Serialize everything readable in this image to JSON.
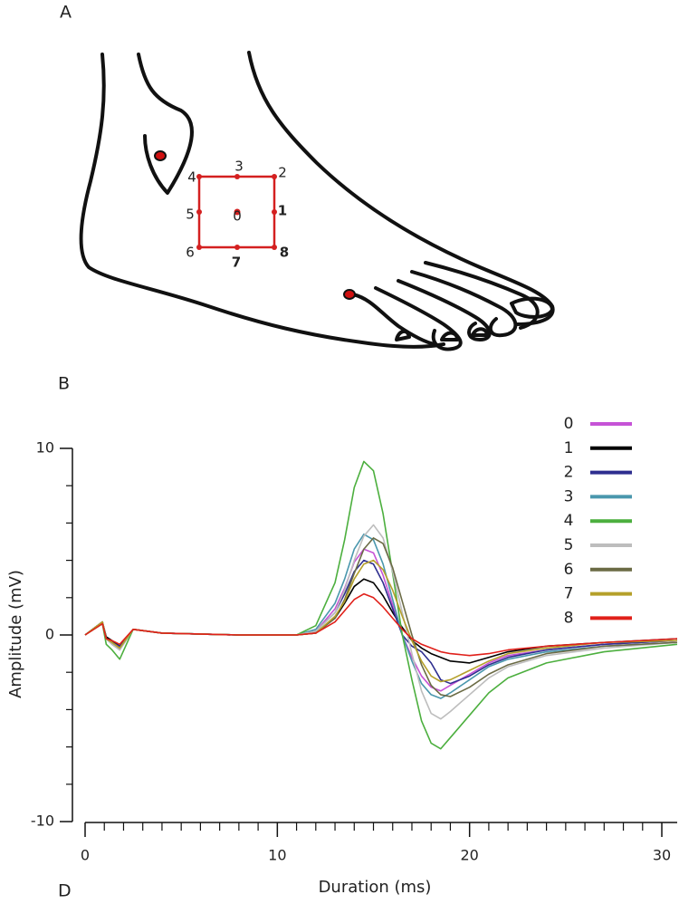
{
  "figure_labels": [
    "A",
    "B",
    "D"
  ],
  "diagram": {
    "electrode_labels": [
      "0",
      "1",
      "2",
      "3",
      "4",
      "5",
      "6",
      "7",
      "8"
    ]
  },
  "chart_data": {
    "type": "line",
    "x_label": "Duration (ms)",
    "y_label": "Amplitude (mV)",
    "xlim": [
      0,
      30.8
    ],
    "ylim": [
      -10,
      10
    ],
    "xticks": [
      0,
      10,
      20,
      30
    ],
    "yticks": [
      -10,
      0,
      10
    ],
    "xminorticks": [
      1,
      2,
      3,
      4,
      5,
      6,
      7,
      8,
      9,
      11,
      12,
      13,
      14,
      15,
      16,
      17,
      18,
      19,
      21,
      22,
      23,
      24,
      25,
      26,
      27,
      28,
      29
    ],
    "yminorticks": [
      -8,
      -6,
      -4,
      -2,
      2,
      4,
      6,
      8
    ],
    "legend": "upper right",
    "x": [
      0,
      0.9,
      1.1,
      1.4,
      1.8,
      2.5,
      4,
      8,
      11,
      12,
      13,
      13.5,
      14,
      14.5,
      15,
      15.5,
      16,
      16.5,
      17,
      17.5,
      18,
      18.5,
      19,
      20,
      21,
      22,
      24,
      27,
      30.8
    ],
    "series": [
      {
        "name": "0",
        "color": "#c653d6",
        "values": [
          0,
          0.7,
          -0.2,
          -0.4,
          -0.7,
          0.3,
          0.1,
          0,
          0,
          0.2,
          1.4,
          2.5,
          3.9,
          4.6,
          4.4,
          3.2,
          1.6,
          0,
          -1.2,
          -2.2,
          -2.8,
          -3.0,
          -2.7,
          -2.1,
          -1.5,
          -1.1,
          -0.8,
          -0.5,
          -0.3
        ]
      },
      {
        "name": "1",
        "color": "#000000",
        "values": [
          0,
          0.7,
          -0.1,
          -0.3,
          -0.6,
          0.3,
          0.1,
          0,
          0,
          0.1,
          0.9,
          1.7,
          2.6,
          3.0,
          2.8,
          2.1,
          1.2,
          0.4,
          -0.3,
          -0.7,
          -1.0,
          -1.2,
          -1.4,
          -1.5,
          -1.2,
          -0.9,
          -0.6,
          -0.4,
          -0.2
        ]
      },
      {
        "name": "2",
        "color": "#2e2e8f",
        "values": [
          0,
          0.7,
          -0.2,
          -0.4,
          -0.6,
          0.3,
          0.1,
          0,
          0,
          0.2,
          1.2,
          2.2,
          3.4,
          4.0,
          3.8,
          2.8,
          1.4,
          0,
          -0.6,
          -0.9,
          -1.5,
          -2.4,
          -2.6,
          -2.2,
          -1.6,
          -1.2,
          -0.8,
          -0.5,
          -0.3
        ]
      },
      {
        "name": "3",
        "color": "#4a97ad",
        "values": [
          0,
          0.7,
          -0.2,
          -0.5,
          -0.8,
          0.3,
          0.1,
          0,
          0,
          0.3,
          1.7,
          3.0,
          4.6,
          5.4,
          5.1,
          3.8,
          1.9,
          0,
          -1.4,
          -2.6,
          -3.2,
          -3.4,
          -3.1,
          -2.4,
          -1.7,
          -1.3,
          -0.9,
          -0.6,
          -0.4
        ]
      },
      {
        "name": "4",
        "color": "#4caf3e",
        "values": [
          0,
          0.6,
          -0.5,
          -0.8,
          -1.3,
          0.3,
          0.1,
          0,
          0,
          0.5,
          2.8,
          5.1,
          7.9,
          9.3,
          8.8,
          6.5,
          3.3,
          0,
          -2.4,
          -4.6,
          -5.8,
          -6.1,
          -5.5,
          -4.3,
          -3.1,
          -2.3,
          -1.5,
          -0.9,
          -0.5
        ]
      },
      {
        "name": "5",
        "color": "#bdbdbd",
        "values": [
          0,
          0.7,
          -0.2,
          -0.5,
          -0.8,
          0.3,
          0.1,
          0,
          0,
          0.2,
          1.2,
          2.4,
          4.0,
          5.3,
          5.9,
          5.2,
          3.4,
          1.2,
          -1.0,
          -3.0,
          -4.2,
          -4.5,
          -4.1,
          -3.2,
          -2.3,
          -1.7,
          -1.1,
          -0.7,
          -0.4
        ]
      },
      {
        "name": "6",
        "color": "#6b6b45",
        "values": [
          0,
          0.7,
          -0.2,
          -0.4,
          -0.7,
          0.3,
          0.1,
          0,
          0,
          0.1,
          0.9,
          1.9,
          3.3,
          4.6,
          5.2,
          4.9,
          3.6,
          1.8,
          0,
          -1.6,
          -2.7,
          -3.2,
          -3.3,
          -2.8,
          -2.1,
          -1.6,
          -1.0,
          -0.6,
          -0.4
        ]
      },
      {
        "name": "7",
        "color": "#b5a02a",
        "values": [
          0,
          0.7,
          -0.2,
          -0.4,
          -0.7,
          0.3,
          0.1,
          0,
          0,
          0.1,
          1.0,
          1.8,
          3.0,
          3.8,
          4.0,
          3.5,
          2.4,
          1.0,
          -0.3,
          -1.4,
          -2.2,
          -2.5,
          -2.4,
          -1.9,
          -1.4,
          -1.0,
          -0.7,
          -0.4,
          -0.3
        ]
      },
      {
        "name": "8",
        "color": "#e0201a",
        "values": [
          0,
          0.6,
          -0.2,
          -0.3,
          -0.5,
          0.3,
          0.1,
          0,
          0,
          0.1,
          0.7,
          1.3,
          1.9,
          2.2,
          2.0,
          1.5,
          0.9,
          0.3,
          -0.2,
          -0.5,
          -0.7,
          -0.9,
          -1.0,
          -1.1,
          -1.0,
          -0.8,
          -0.6,
          -0.4,
          -0.2
        ]
      }
    ]
  }
}
